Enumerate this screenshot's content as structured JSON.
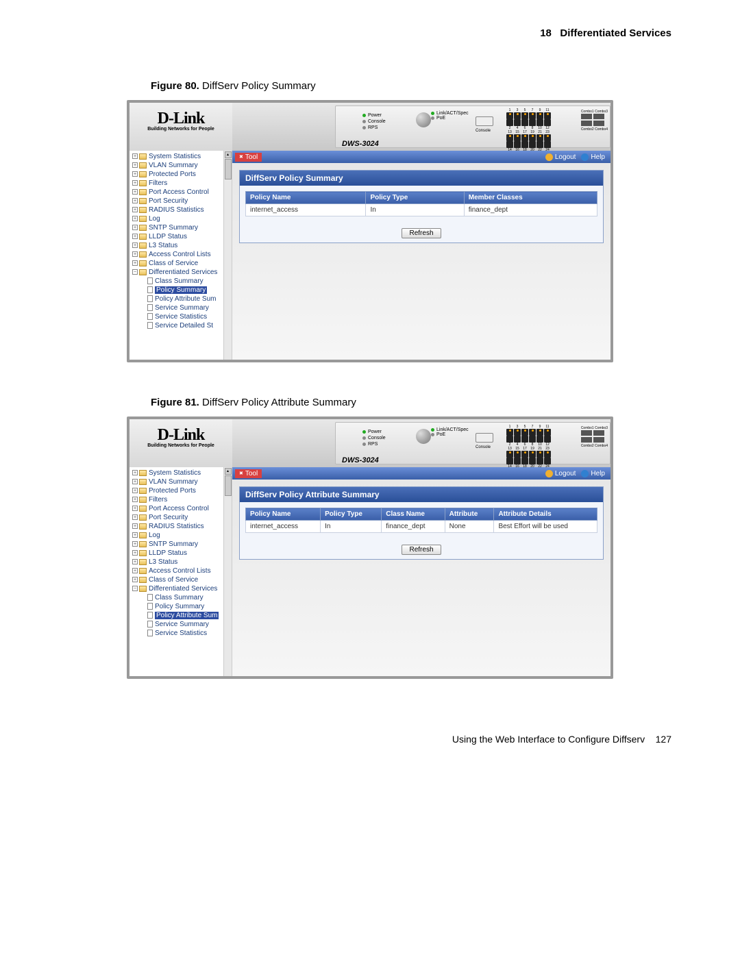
{
  "header": {
    "chapter_num": "18",
    "chapter_title": "Differentiated Services"
  },
  "footer": {
    "text": "Using the Web Interface to Configure Diffserv",
    "page_num": "127"
  },
  "figures": [
    {
      "label": "Figure 80.",
      "title": "DiffServ Policy Summary"
    },
    {
      "label": "Figure 81.",
      "title": "DiffServ Policy Attribute Summary"
    }
  ],
  "brand": {
    "name": "D-Link",
    "tagline": "Building Networks for People",
    "model": "DWS-3024"
  },
  "device": {
    "leds": [
      "Power",
      "Console",
      "RPS"
    ],
    "linkact": "Link/ACT/Spec",
    "poe": "PoE",
    "console": "Console",
    "combo_labels": [
      "Combo1 Combo3",
      "Combo2 Combo4"
    ],
    "port_nums_top": [
      "1",
      "3",
      "5",
      "7",
      "9",
      "11"
    ],
    "port_nums_bot": [
      "2",
      "4",
      "6",
      "8",
      "10",
      "12"
    ],
    "port_nums_top2": [
      "13",
      "15",
      "17",
      "19",
      "21",
      "23"
    ],
    "port_nums_bot2": [
      "14",
      "16",
      "18",
      "20",
      "22",
      "24"
    ]
  },
  "toolbar": {
    "tool": "Tool",
    "logout": "Logout",
    "help": "Help"
  },
  "tree_common": [
    "System Statistics",
    "VLAN Summary",
    "Protected Ports",
    "Filters",
    "Port Access Control",
    "Port Security",
    "RADIUS Statistics",
    "Log",
    "SNTP Summary",
    "LLDP Status",
    "L3 Status",
    "Access Control Lists",
    "Class of Service",
    "Differentiated Services"
  ],
  "tree_sub_80": [
    "Class Summary",
    "Policy Summary",
    "Policy Attribute Sum",
    "Service Summary",
    "Service Statistics",
    "Service Detailed St"
  ],
  "tree_sub_81": [
    "Class Summary",
    "Policy Summary",
    "Policy Attribute Sum",
    "Service Summary",
    "Service Statistics"
  ],
  "panel80": {
    "title": "DiffServ Policy Summary",
    "columns": [
      "Policy Name",
      "Policy Type",
      "Member Classes"
    ],
    "rows": [
      [
        "internet_access",
        "In",
        "finance_dept"
      ]
    ],
    "refresh": "Refresh"
  },
  "panel81": {
    "title": "DiffServ Policy Attribute Summary",
    "columns": [
      "Policy Name",
      "Policy Type",
      "Class Name",
      "Attribute",
      "Attribute Details"
    ],
    "rows": [
      [
        "internet_access",
        "In",
        "finance_dept",
        "None",
        "Best Effort will be used"
      ]
    ],
    "refresh": "Refresh"
  },
  "selected80": "Policy Summary",
  "selected81": "Policy Attribute Sum"
}
